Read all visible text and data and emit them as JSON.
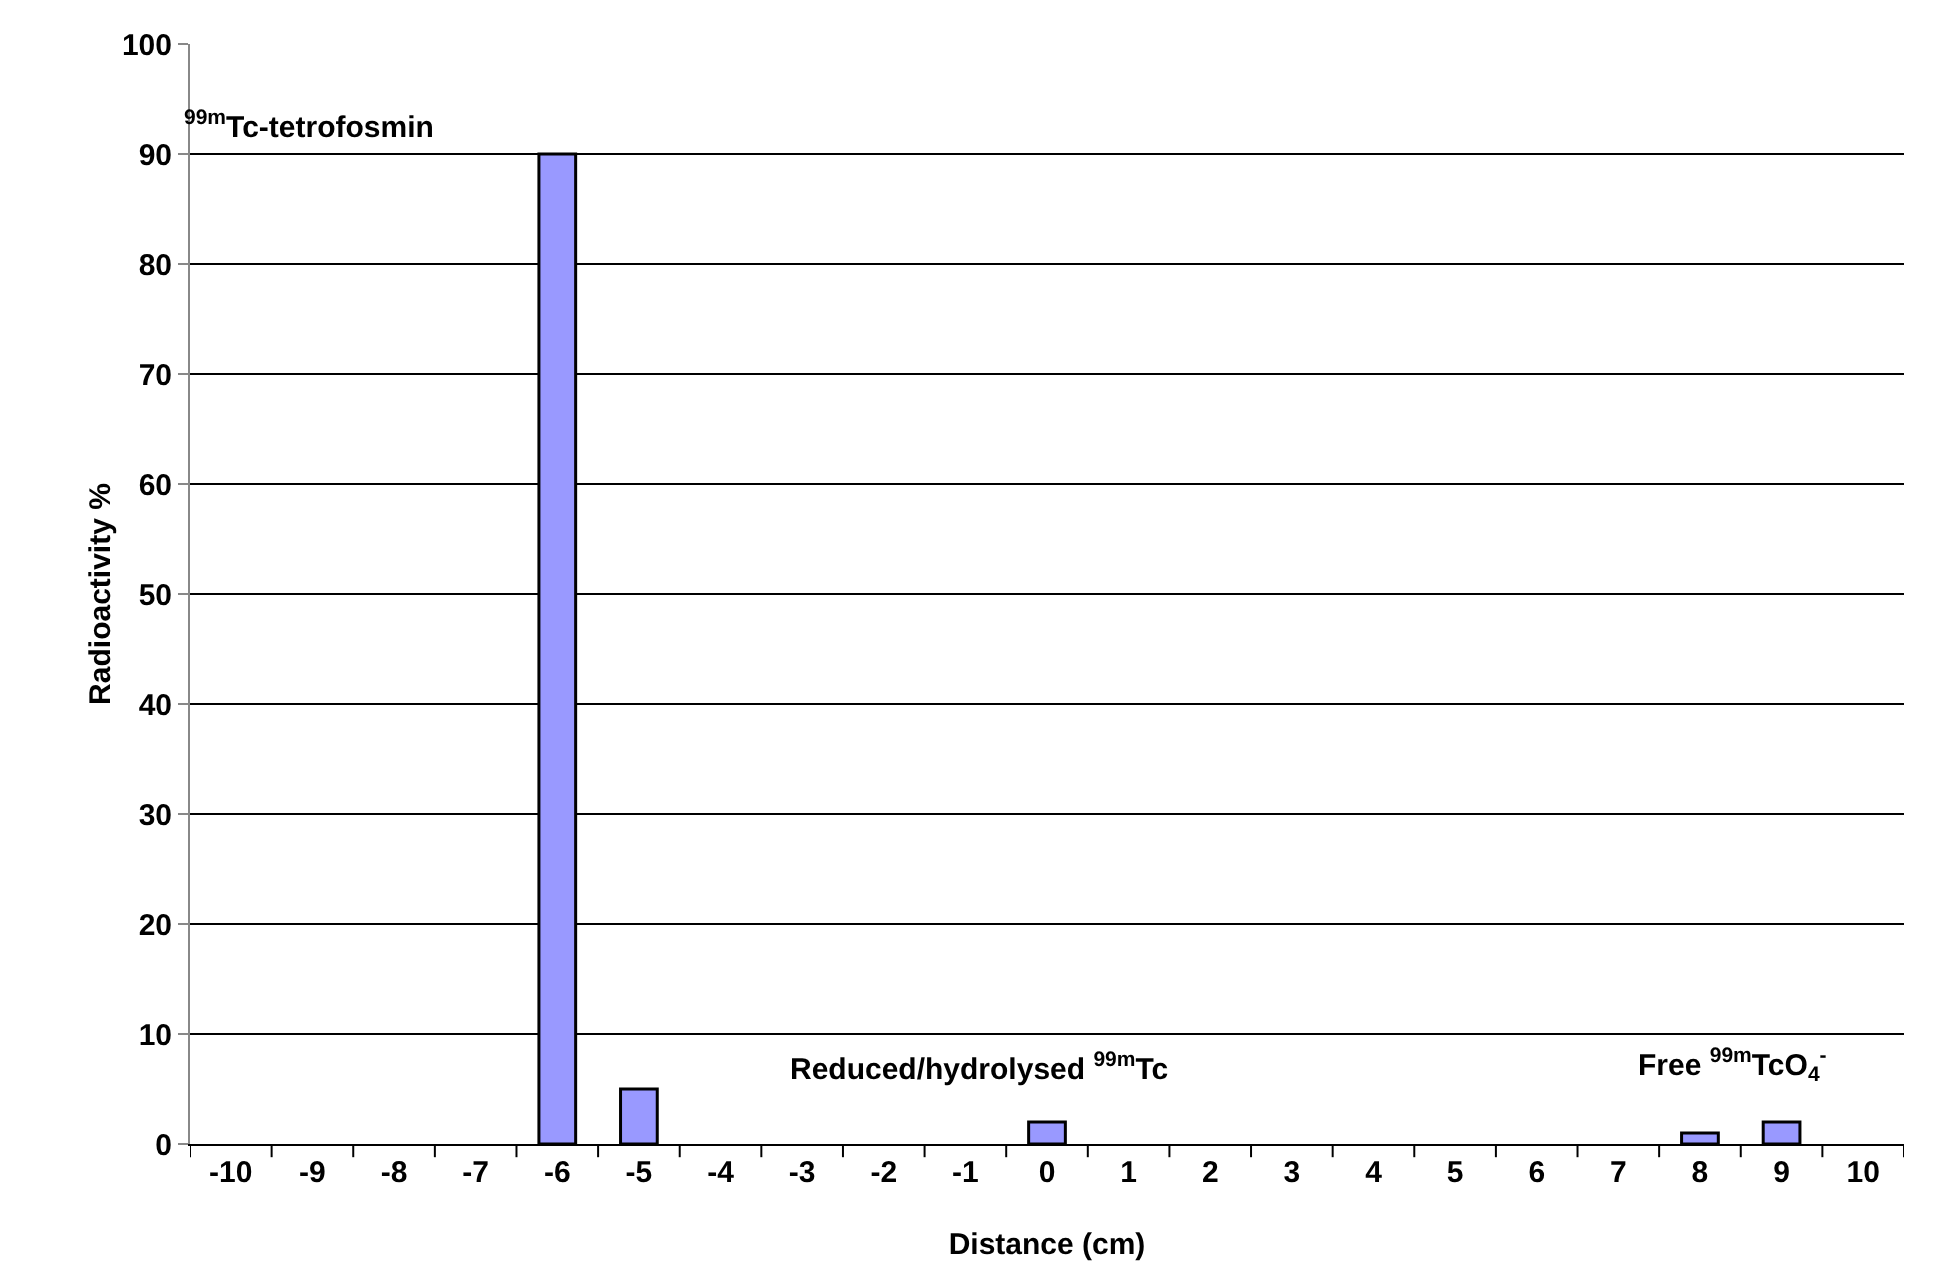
{
  "chart_data": {
    "type": "bar",
    "xlabel": "Distance (cm)",
    "ylabel": "Radioactivity %",
    "categories": [
      "-10",
      "-9",
      "-8",
      "-7",
      "-6",
      "-5",
      "-4",
      "-3",
      "-2",
      "-1",
      "0",
      "1",
      "2",
      "3",
      "4",
      "5",
      "6",
      "7",
      "8",
      "9",
      "10"
    ],
    "values": [
      0,
      0,
      0,
      0,
      90,
      5,
      0,
      0,
      0,
      0,
      2,
      0,
      0,
      0,
      0,
      0,
      0,
      0,
      1,
      2,
      0
    ],
    "color": "#9999ff",
    "ylim": [
      0,
      100
    ],
    "yticks": [
      0,
      10,
      20,
      30,
      40,
      50,
      60,
      70,
      80,
      90,
      100
    ],
    "grid": "y",
    "legend": false,
    "annotations": [
      "$^{99m}$Tc-tetrofosmin",
      "Reduced/hydrolysed $^{99m}$Tc",
      "Free $^{99m}$TcO$_{4}$$^{-}$"
    ]
  }
}
